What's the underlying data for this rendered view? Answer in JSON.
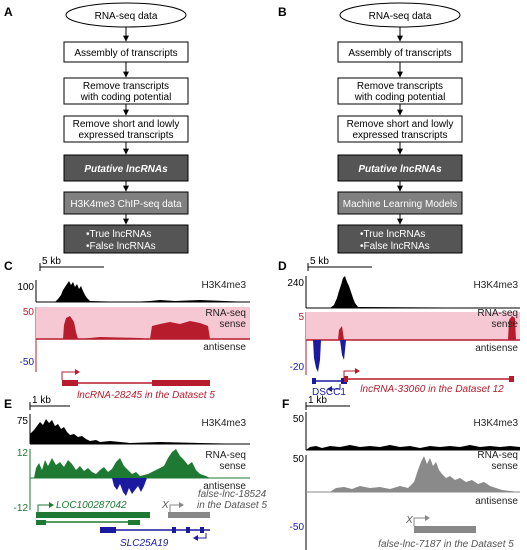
{
  "panels": {
    "A": {
      "letter": "A",
      "steps": [
        "RNA-seq data",
        "Assembly of transcripts",
        "Remove transcripts",
        "with coding potential",
        "Remove short and lowly",
        "expressed transcripts",
        "Putative lncRNAs",
        "H3K4me3 ChIP-seq data",
        "•True lncRNAs",
        "•False lncRNAs"
      ]
    },
    "B": {
      "letter": "B",
      "steps": [
        "RNA-seq data",
        "Assembly of transcripts",
        "Remove transcripts",
        "with coding potential",
        "Remove short and lowly",
        "expressed transcripts",
        "Putative lncRNAs",
        "Machine Learning Models",
        "•True lncRNAs",
        "•False lncRNAs"
      ]
    },
    "C": {
      "letter": "C",
      "scale": "5 kb",
      "h3_label": "H3K4me3",
      "h3_max": "100",
      "rna_max": "50",
      "rna_min": "-50",
      "rna_label": "RNA-seq",
      "sense": "sense",
      "antisense": "antisense",
      "gene": "lncRNA-28245 in the Dataset 5"
    },
    "D": {
      "letter": "D",
      "scale": "5 kb",
      "h3_label": "H3K4me3",
      "h3_max": "240",
      "rna_max": "5",
      "rna_min": "-20",
      "rna_label": "RNA-seq",
      "sense": "sense",
      "antisense": "antisense",
      "gene": "lncRNA-33060 in the Dataset 12",
      "gene2": "DSCC1"
    },
    "E": {
      "letter": "E",
      "scale": "1 kb",
      "h3_label": "H3K4me3",
      "h3_max": "75",
      "rna_max": "12",
      "rna_min": "-12",
      "rna_label": "RNA-seq",
      "sense": "sense",
      "antisense": "antisense",
      "gene": "LOC100287042",
      "gene2": "SLC25A19",
      "gene3": "false-lnc-18524",
      "gene3b": "in the Dataset 5",
      "mark": "X"
    },
    "F": {
      "letter": "F",
      "scale": "1 kb",
      "h3_label": "H3K4me3",
      "h3_max": "50",
      "rna_max": "50",
      "rna_min": "-50",
      "rna_label": "RNA-seq",
      "sense": "sense",
      "antisense": "antisense",
      "gene": "false-lnc-7187 in the Dataset 5",
      "mark": "X"
    }
  },
  "colors": {
    "black": "#000000",
    "red": "#b71c2c",
    "pink": "#f6c8d4",
    "blue": "#1a1a9e",
    "green": "#1e7a32",
    "gray": "#8a8a8a",
    "box_dark": "#555555",
    "box_mid": "#808080"
  }
}
